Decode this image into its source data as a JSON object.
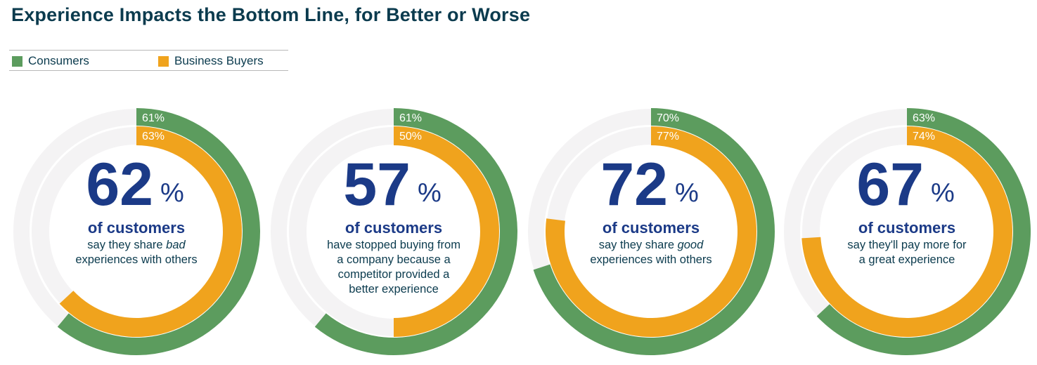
{
  "title": "Experience Impacts the Bottom Line, for Better or Worse",
  "legend": [
    {
      "label": "Consumers",
      "color": "#5c9c5e"
    },
    {
      "label": "Business Buyers",
      "color": "#f0a31d"
    }
  ],
  "colors": {
    "track": "#f4f3f4",
    "headline": "#1b3a87",
    "text": "#0b3b4e"
  },
  "chart_data": [
    {
      "type": "donut",
      "series": [
        {
          "name": "Consumers",
          "value": 61,
          "label": "61%"
        },
        {
          "name": "Business Buyers",
          "value": 63,
          "label": "63%"
        }
      ],
      "headline": "62",
      "unit": "%",
      "subhead": "of customers",
      "description": [
        [
          {
            "t": "say they share "
          },
          {
            "t": "bad",
            "i": true
          }
        ],
        [
          {
            "t": "experiences with others"
          }
        ]
      ]
    },
    {
      "type": "donut",
      "series": [
        {
          "name": "Consumers",
          "value": 61,
          "label": "61%"
        },
        {
          "name": "Business Buyers",
          "value": 50,
          "label": "50%"
        }
      ],
      "headline": "57",
      "unit": "%",
      "subhead": "of customers",
      "description": [
        [
          {
            "t": "have stopped buying from"
          }
        ],
        [
          {
            "t": "a company because a"
          }
        ],
        [
          {
            "t": "competitor provided a"
          }
        ],
        [
          {
            "t": "better experience"
          }
        ]
      ]
    },
    {
      "type": "donut",
      "series": [
        {
          "name": "Consumers",
          "value": 70,
          "label": "70%"
        },
        {
          "name": "Business Buyers",
          "value": 77,
          "label": "77%"
        }
      ],
      "headline": "72",
      "unit": "%",
      "subhead": "of customers",
      "description": [
        [
          {
            "t": "say they share "
          },
          {
            "t": "good",
            "i": true
          }
        ],
        [
          {
            "t": "experiences with others"
          }
        ]
      ]
    },
    {
      "type": "donut",
      "series": [
        {
          "name": "Consumers",
          "value": 63,
          "label": "63%"
        },
        {
          "name": "Business Buyers",
          "value": 74,
          "label": "74%"
        }
      ],
      "headline": "67",
      "unit": "%",
      "subhead": "of customers",
      "description": [
        [
          {
            "t": "say they'll pay more for"
          }
        ],
        [
          {
            "t": "a great experience"
          }
        ]
      ]
    }
  ]
}
